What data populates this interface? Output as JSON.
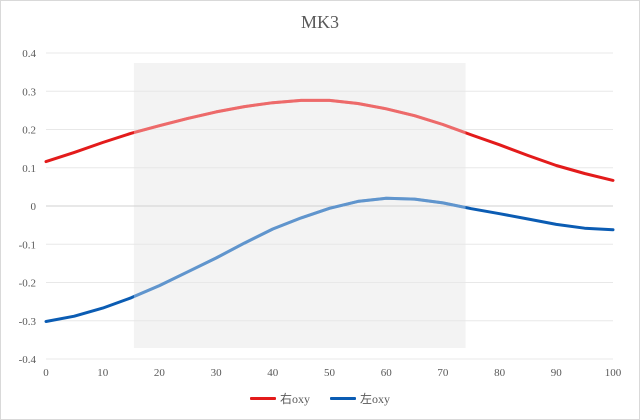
{
  "chart_data": {
    "type": "line",
    "title": "MK3",
    "xlabel": "",
    "ylabel": "",
    "xlim": [
      0,
      100
    ],
    "ylim": [
      -0.4,
      0.4
    ],
    "x_ticks": [
      "0",
      "10",
      "20",
      "30",
      "40",
      "50",
      "60",
      "70",
      "80",
      "90",
      "100"
    ],
    "y_ticks": [
      "0.4",
      "0.3",
      "0.2",
      "0.1",
      "0",
      "-0.1",
      "-0.2",
      "-0.3",
      "-0.4"
    ],
    "grid": "horizontal",
    "legend_position": "bottom",
    "highlight_band": {
      "x_start": 15.5,
      "x_end": 74
    },
    "series": [
      {
        "name": "右oxy",
        "color": "#e31b1b",
        "x": [
          0,
          5,
          10,
          15,
          20,
          25,
          30,
          35,
          40,
          45,
          50,
          55,
          60,
          65,
          70,
          75,
          80,
          85,
          90,
          95,
          100
        ],
        "values": [
          0.116,
          0.14,
          0.166,
          0.19,
          0.21,
          0.229,
          0.246,
          0.26,
          0.27,
          0.276,
          0.276,
          0.268,
          0.254,
          0.236,
          0.213,
          0.186,
          0.16,
          0.132,
          0.106,
          0.085,
          0.067
        ]
      },
      {
        "name": "左oxy",
        "color": "#0b5cb3",
        "x": [
          0,
          5,
          10,
          15,
          20,
          25,
          30,
          35,
          40,
          45,
          50,
          55,
          60,
          65,
          70,
          75,
          80,
          85,
          90,
          95,
          100
        ],
        "values": [
          -0.302,
          -0.288,
          -0.267,
          -0.24,
          -0.208,
          -0.172,
          -0.136,
          -0.097,
          -0.06,
          -0.031,
          -0.006,
          0.012,
          0.02,
          0.018,
          0.008,
          -0.007,
          -0.02,
          -0.034,
          -0.048,
          -0.058,
          -0.062
        ]
      }
    ]
  }
}
